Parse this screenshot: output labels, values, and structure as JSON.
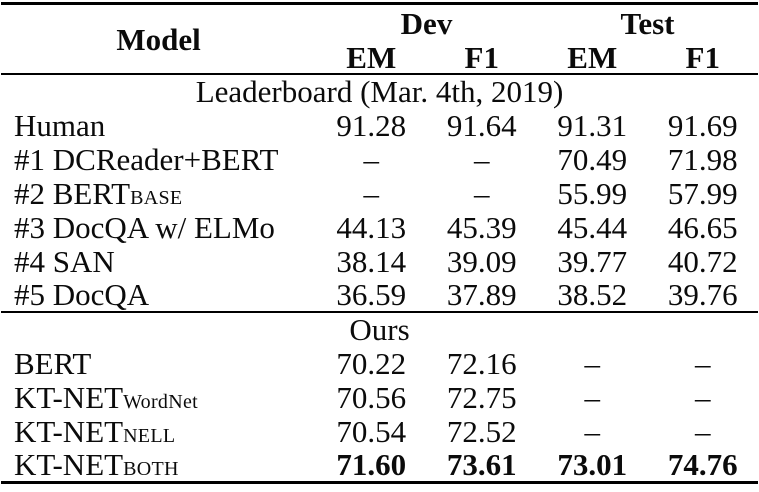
{
  "figure": {
    "type": "paper-results-table",
    "colors": {
      "background": "#ffffff",
      "text": "#000000",
      "rule": "#000000"
    }
  },
  "table": {
    "header": {
      "model": "Model",
      "groups": [
        {
          "label": "Dev"
        },
        {
          "label": "Test"
        }
      ],
      "subcols": [
        "EM",
        "F1",
        "EM",
        "F1"
      ]
    },
    "missing_value_symbol": "–",
    "sections": [
      {
        "title": "Leaderboard (Mar. 4th, 2019)",
        "rows": [
          {
            "model": "Human",
            "sub": "",
            "values": [
              "91.28",
              "91.64",
              "91.31",
              "91.69"
            ],
            "bold": false
          },
          {
            "model": "#1 DCReader+BERT",
            "sub": "",
            "values": [
              "–",
              "–",
              "70.49",
              "71.98"
            ],
            "bold": false
          },
          {
            "model": "#2 BERT",
            "sub": "BASE",
            "values": [
              "–",
              "–",
              "55.99",
              "57.99"
            ],
            "bold": false
          },
          {
            "model": "#3 DocQA w/ ELMo",
            "sub": "",
            "values": [
              "44.13",
              "45.39",
              "45.44",
              "46.65"
            ],
            "bold": false
          },
          {
            "model": "#4 SAN",
            "sub": "",
            "values": [
              "38.14",
              "39.09",
              "39.77",
              "40.72"
            ],
            "bold": false
          },
          {
            "model": "#5 DocQA",
            "sub": "",
            "values": [
              "36.59",
              "37.89",
              "38.52",
              "39.76"
            ],
            "bold": false
          }
        ]
      },
      {
        "title": "Ours",
        "rows": [
          {
            "model": "BERT",
            "sub": "",
            "values": [
              "70.22",
              "72.16",
              "–",
              "–"
            ],
            "bold": false
          },
          {
            "model": "KT-NET",
            "sub": "WordNet",
            "values": [
              "70.56",
              "72.75",
              "–",
              "–"
            ],
            "bold": false
          },
          {
            "model": "KT-NET",
            "sub": "NELL",
            "values": [
              "70.54",
              "72.52",
              "–",
              "–"
            ],
            "bold": false
          },
          {
            "model": "KT-NET",
            "sub": "BOTH",
            "values": [
              "71.60",
              "73.61",
              "73.01",
              "74.76"
            ],
            "bold": true
          }
        ]
      }
    ]
  }
}
